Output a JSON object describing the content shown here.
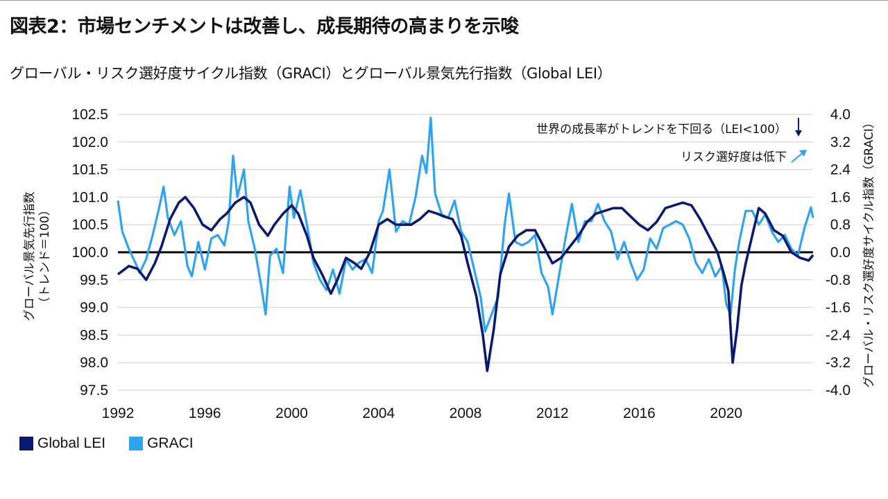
{
  "title": "図表2：市場センチメントは改善し、成長期待の高まりを示唆",
  "subtitle": "グローバル・リスク選好度サイクル指数（GRACI）とグローバル景気先行指数（Global LEI）",
  "colors": {
    "lei": "#0b1a6e",
    "graci": "#2ea3ee",
    "grid": "#cfcfcf",
    "baseline": "#000000"
  },
  "chart_data": {
    "type": "line",
    "left_axis": {
      "label": "グローバル景気先行指数\n（トレンド＝100）",
      "min": 97.5,
      "max": 102.5,
      "ticks": [
        "102.5",
        "102.0",
        "101.5",
        "101.0",
        "100.5",
        "100.0",
        "99.5",
        "99.0",
        "98.5",
        "98.0",
        "97.5"
      ]
    },
    "right_axis": {
      "label": "グローバル・リスク選好度サイクル指数（GRACI）",
      "min": -4.0,
      "max": 4.0,
      "ticks": [
        "4.0",
        "3.2",
        "2.4",
        "1.6",
        "0.8",
        "0.0",
        "-0.8",
        "-1.6",
        "-2.4",
        "-3.2",
        "-4.0"
      ]
    },
    "x_axis": {
      "min": 1992,
      "max": 2024,
      "ticks": [
        "1992",
        "1996",
        "2000",
        "2004",
        "2008",
        "2012",
        "2016",
        "2020"
      ]
    },
    "annotations": [
      {
        "text": "世界の成長率がトレンドを下回る（LEI<100）",
        "symbol": "↓"
      },
      {
        "text": "リスク選好度は低下",
        "symbol": "↗"
      }
    ],
    "legend": [
      "Global LEI",
      "GRACI"
    ],
    "series": [
      {
        "name": "Global LEI",
        "axis": "left",
        "x": [
          1992.0,
          1992.5,
          1992.9,
          1993.3,
          1993.7,
          1994.0,
          1994.4,
          1994.8,
          1995.1,
          1995.5,
          1995.9,
          1996.3,
          1996.7,
          1997.0,
          1997.4,
          1997.8,
          1998.1,
          1998.5,
          1998.9,
          1999.2,
          1999.6,
          2000.0,
          2000.3,
          2000.7,
          2001.0,
          2001.4,
          2001.8,
          2002.1,
          2002.5,
          2002.9,
          2003.2,
          2003.6,
          2004.0,
          2004.4,
          2004.8,
          2005.1,
          2005.5,
          2005.9,
          2006.3,
          2006.7,
          2007.0,
          2007.4,
          2007.8,
          2008.1,
          2008.5,
          2008.8,
          2009.0,
          2009.3,
          2009.6,
          2010.0,
          2010.4,
          2010.8,
          2011.2,
          2011.6,
          2012.0,
          2012.4,
          2012.8,
          2013.2,
          2013.6,
          2014.0,
          2014.4,
          2014.8,
          2015.2,
          2015.6,
          2016.0,
          2016.4,
          2016.8,
          2017.2,
          2017.6,
          2018.0,
          2018.4,
          2018.8,
          2019.2,
          2019.6,
          2019.9,
          2020.1,
          2020.3,
          2020.5,
          2020.7,
          2020.9,
          2021.2,
          2021.5,
          2021.8,
          2022.2,
          2022.6,
          2023.0,
          2023.4,
          2023.8,
          2024.0
        ],
        "y": [
          99.6,
          99.75,
          99.7,
          99.5,
          99.8,
          100.1,
          100.6,
          100.9,
          101.0,
          100.8,
          100.5,
          100.4,
          100.6,
          100.7,
          100.9,
          101.0,
          100.9,
          100.5,
          100.3,
          100.5,
          100.7,
          100.85,
          100.7,
          100.3,
          99.9,
          99.6,
          99.25,
          99.5,
          99.9,
          99.8,
          99.7,
          100.0,
          100.5,
          100.6,
          100.5,
          100.5,
          100.5,
          100.6,
          100.75,
          100.7,
          100.65,
          100.6,
          100.3,
          99.8,
          99.2,
          98.5,
          97.85,
          98.6,
          99.6,
          100.1,
          100.3,
          100.4,
          100.4,
          100.1,
          99.8,
          99.9,
          100.1,
          100.3,
          100.55,
          100.7,
          100.75,
          100.8,
          100.8,
          100.65,
          100.5,
          100.4,
          100.55,
          100.8,
          100.85,
          100.9,
          100.85,
          100.6,
          100.3,
          100.0,
          99.6,
          99.3,
          98.0,
          98.6,
          99.4,
          99.8,
          100.3,
          100.8,
          100.7,
          100.4,
          100.3,
          100.0,
          99.9,
          99.85,
          99.95
        ]
      },
      {
        "name": "GRACI",
        "axis": "right",
        "x": [
          1992.0,
          1992.2,
          1992.5,
          1992.8,
          1993.0,
          1993.3,
          1993.6,
          1993.9,
          1994.1,
          1994.3,
          1994.6,
          1994.9,
          1995.2,
          1995.4,
          1995.7,
          1996.0,
          1996.3,
          1996.6,
          1996.9,
          1997.1,
          1997.3,
          1997.5,
          1997.8,
          1998.0,
          1998.3,
          1998.6,
          1998.8,
          1999.0,
          1999.3,
          1999.6,
          1999.9,
          2000.1,
          2000.4,
          2000.7,
          2001.0,
          2001.3,
          2001.6,
          2001.9,
          2002.2,
          2002.5,
          2002.8,
          2003.1,
          2003.4,
          2003.7,
          2004.0,
          2004.2,
          2004.5,
          2004.8,
          2005.1,
          2005.4,
          2005.7,
          2006.0,
          2006.2,
          2006.4,
          2006.6,
          2006.9,
          2007.2,
          2007.5,
          2007.8,
          2008.1,
          2008.4,
          2008.7,
          2008.9,
          2009.2,
          2009.5,
          2009.8,
          2010.0,
          2010.3,
          2010.6,
          2010.9,
          2011.2,
          2011.5,
          2011.8,
          2012.0,
          2012.3,
          2012.6,
          2012.9,
          2013.2,
          2013.5,
          2013.8,
          2014.1,
          2014.4,
          2014.7,
          2015.0,
          2015.3,
          2015.6,
          2015.9,
          2016.2,
          2016.5,
          2016.8,
          2017.1,
          2017.4,
          2017.7,
          2018.0,
          2018.3,
          2018.6,
          2018.9,
          2019.2,
          2019.5,
          2019.8,
          2020.0,
          2020.2,
          2020.4,
          2020.6,
          2020.9,
          2021.2,
          2021.5,
          2021.8,
          2022.1,
          2022.4,
          2022.7,
          2023.0,
          2023.3,
          2023.6,
          2023.9,
          2024.0
        ],
        "y": [
          1.5,
          0.6,
          0.1,
          -0.3,
          -0.6,
          -0.2,
          0.5,
          1.3,
          1.9,
          1.0,
          0.5,
          0.9,
          -0.4,
          -0.7,
          0.3,
          -0.5,
          0.4,
          0.5,
          0.2,
          0.9,
          2.8,
          1.6,
          2.4,
          0.9,
          0.1,
          -1.0,
          -1.8,
          -0.1,
          0.1,
          -0.6,
          1.9,
          1.0,
          1.8,
          0.8,
          -0.3,
          -0.8,
          -1.1,
          -0.5,
          -1.2,
          -0.2,
          -0.5,
          -0.3,
          -0.2,
          -0.6,
          0.9,
          1.2,
          2.4,
          0.6,
          0.9,
          0.8,
          1.6,
          2.8,
          2.3,
          3.9,
          1.7,
          1.1,
          1.0,
          1.5,
          0.6,
          0.3,
          -0.5,
          -1.3,
          -2.3,
          -1.8,
          -1.3,
          0.8,
          1.7,
          0.3,
          0.2,
          0.3,
          0.5,
          -0.6,
          -1.0,
          -1.8,
          -0.7,
          0.4,
          1.4,
          0.3,
          0.9,
          0.9,
          1.4,
          0.9,
          0.6,
          -0.2,
          0.3,
          -0.3,
          -0.8,
          -0.5,
          0.4,
          0.1,
          0.7,
          0.8,
          0.9,
          0.8,
          0.4,
          -0.3,
          -0.6,
          -0.2,
          -0.7,
          -0.4,
          -1.5,
          -1.8,
          -0.5,
          0.3,
          1.2,
          1.2,
          0.8,
          1.1,
          0.6,
          0.3,
          0.5,
          0.1,
          -0.1,
          0.7,
          1.3,
          1.0
        ]
      }
    ]
  },
  "legend_labels": {
    "lei": "Global LEI",
    "graci": "GRACI"
  }
}
